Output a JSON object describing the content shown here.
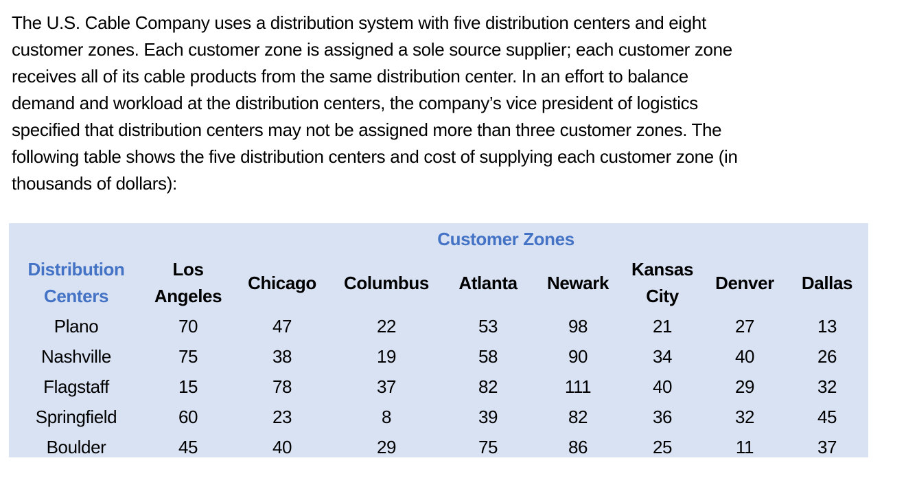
{
  "paragraph": {
    "lines": [
      "The U.S. Cable Company uses a distribution system with five distribution centers and eight",
      "customer zones. Each customer zone is assigned a sole source supplier; each customer zone",
      "receives all of its cable products from the same distribution center. In an effort to balance",
      "demand and workload at the distribution centers, the company’s vice president of logistics",
      "specified that distribution centers may not be assigned more than three customer zones. The",
      "following table shows the five distribution centers and cost of supplying each customer zone (in",
      "thousands of dollars):"
    ]
  },
  "table": {
    "background_color": "#D9E2F3",
    "accent_color": "#4472C4",
    "group_header": "Customer Zones",
    "row_header_label": {
      "line1": "Distribution",
      "line2": "Centers"
    },
    "columns": [
      {
        "line1": "Los",
        "line2": "Angeles"
      },
      {
        "line1": "Chicago",
        "line2": ""
      },
      {
        "line1": "Columbus",
        "line2": ""
      },
      {
        "line1": "Atlanta",
        "line2": ""
      },
      {
        "line1": "Newark",
        "line2": ""
      },
      {
        "line1": "Kansas",
        "line2": "City"
      },
      {
        "line1": "Denver",
        "line2": ""
      },
      {
        "line1": "Dallas",
        "line2": ""
      }
    ],
    "rows": [
      {
        "center": "Plano",
        "values": [
          "70",
          "47",
          "22",
          "53",
          "98",
          "21",
          "27",
          "13"
        ]
      },
      {
        "center": "Nashville",
        "values": [
          "75",
          "38",
          "19",
          "58",
          "90",
          "34",
          "40",
          "26"
        ]
      },
      {
        "center": "Flagstaff",
        "values": [
          "15",
          "78",
          "37",
          "82",
          "111",
          "40",
          "29",
          "32"
        ]
      },
      {
        "center": "Springfield",
        "values": [
          "60",
          "23",
          "8",
          "39",
          "82",
          "36",
          "32",
          "45"
        ]
      },
      {
        "center": "Boulder",
        "values": [
          "45",
          "40",
          "29",
          "75",
          "86",
          "25",
          "11",
          "37"
        ]
      }
    ]
  }
}
